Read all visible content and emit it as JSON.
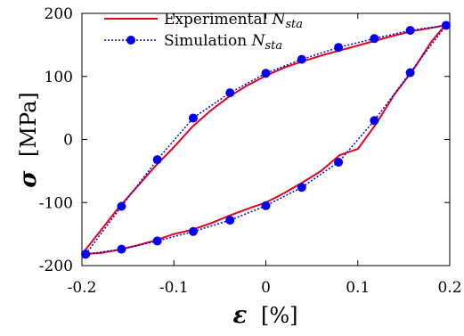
{
  "colors": {
    "experimental": "#e8001c",
    "simulation": "#0000ee",
    "axes": "#000000",
    "background": "#ffffff"
  },
  "chart_data": {
    "type": "line",
    "x_axis": {
      "symbol": "ε",
      "unit_label": "[%]",
      "range": [
        -0.2,
        0.2
      ],
      "ticks": [
        -0.2,
        -0.1,
        0,
        0.1,
        0.2
      ],
      "tick_labels": [
        "-0.2",
        "-0.1",
        "0",
        "0.1",
        "0.2"
      ]
    },
    "y_axis": {
      "symbol": "σ",
      "unit_label": "[MPa]",
      "range": [
        -200,
        200
      ],
      "ticks": [
        -200,
        -100,
        0,
        100,
        200
      ],
      "tick_labels": [
        "-200",
        "-100",
        "0",
        "100",
        "200"
      ]
    },
    "grid": false,
    "legend_position": "top-left",
    "series": [
      {
        "name_main": "Experimental ",
        "name_italic": "N",
        "name_sub": "sta",
        "style": "solid",
        "markers": false,
        "x": [
          -0.2,
          -0.18,
          -0.16,
          -0.14,
          -0.12,
          -0.1,
          -0.08,
          -0.06,
          -0.04,
          -0.02,
          0.0,
          0.02,
          0.04,
          0.06,
          0.08,
          0.1,
          0.12,
          0.14,
          0.16,
          0.18,
          0.195,
          0.18,
          0.16,
          0.14,
          0.12,
          0.1,
          0.08,
          0.06,
          0.04,
          0.02,
          0.0,
          -0.02,
          -0.04,
          -0.06,
          -0.08,
          -0.1,
          -0.12,
          -0.14,
          -0.16,
          -0.18,
          -0.2
        ],
        "y": [
          -182,
          -145,
          -108,
          -75,
          -42,
          -12,
          20,
          46,
          68,
          86,
          101,
          114,
          124,
          133,
          141,
          149,
          157,
          165,
          172,
          177,
          181,
          155,
          110,
          72,
          25,
          -15,
          -25,
          -50,
          -68,
          -85,
          -100,
          -110,
          -121,
          -133,
          -143,
          -150,
          -160,
          -168,
          -175,
          -180,
          -182
        ]
      },
      {
        "name_main": "Simulation ",
        "name_italic": "N",
        "name_sub": "sta",
        "style": "dotted",
        "markers": true,
        "x": [
          -0.196,
          -0.157,
          -0.118,
          -0.079,
          -0.039,
          0.0,
          0.039,
          0.079,
          0.118,
          0.157,
          0.196,
          0.157,
          0.118,
          0.079,
          0.039,
          0.0,
          -0.039,
          -0.079,
          -0.118,
          -0.157,
          -0.196
        ],
        "y": [
          -182,
          -106,
          -32,
          34,
          74,
          105,
          127,
          146,
          160,
          173,
          181,
          106,
          30,
          -36,
          -76,
          -105,
          -128,
          -146,
          -161,
          -174,
          -182
        ]
      }
    ]
  }
}
